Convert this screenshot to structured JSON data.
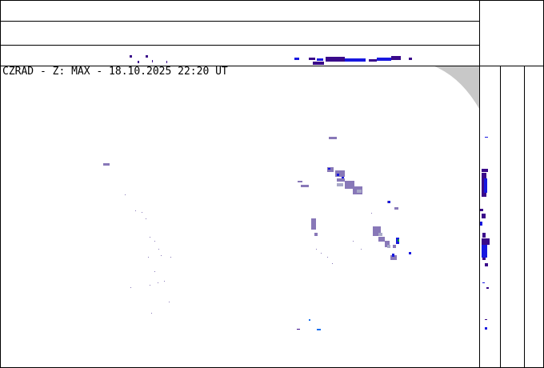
{
  "product": {
    "title": "CZRAD - Z: MAX - 18.10.2025 22:20 UT"
  },
  "colors": {
    "weak_echo": "#8878b8",
    "light_gray_echo": "#a8a8c8",
    "dark_purple": "#3a0a8a",
    "blue": "#1818e0",
    "light_blue": "#1870f0",
    "green": "#10a040",
    "no_data": "#c8c8c8"
  }
}
